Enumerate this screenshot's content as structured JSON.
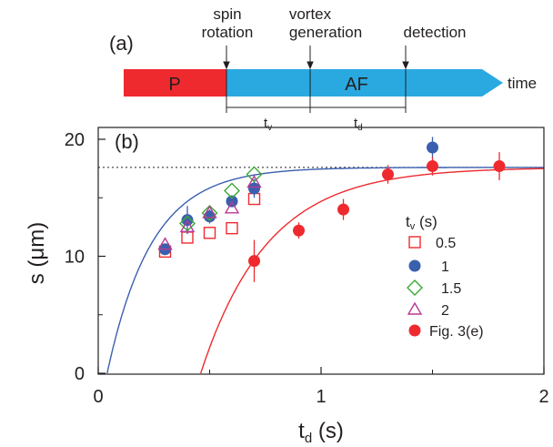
{
  "panel_a": {
    "label": "(a)",
    "events": [
      "spin\nrotation",
      "vortex\ngeneration",
      "detection"
    ],
    "phase_p": "P",
    "phase_af": "AF",
    "arrow_label": "time",
    "tv_label": "t",
    "tv_sub": "v",
    "td_label": "t",
    "td_sub": "d",
    "colors": {
      "p": "#ee2a2f",
      "af": "#2aa9e0"
    }
  },
  "chart_data": {
    "type": "scatter",
    "panel_label": "(b)",
    "xlabel": "t",
    "xlabel_sub": "d",
    "xlabel_unit": " (s)",
    "ylabel": "s (μm)",
    "xlim": [
      0,
      2
    ],
    "ylim": [
      0,
      20
    ],
    "xticks": [
      "0",
      "1",
      "2"
    ],
    "yticks": [
      "0",
      "10",
      "20"
    ],
    "reference_line_y": 17.6,
    "legend": {
      "title": "t",
      "title_sub": "v",
      "title_unit": " (s)",
      "position": "right"
    },
    "series": [
      {
        "name": "0.5",
        "marker": "square",
        "color": "#ee2a2f",
        "x": [
          0.3,
          0.4,
          0.5,
          0.6,
          0.7
        ],
        "y": [
          10.4,
          11.6,
          12.0,
          12.4,
          14.9
        ]
      },
      {
        "name": "1",
        "marker": "filled-circle",
        "color": "#3a5fae",
        "x": [
          0.3,
          0.4,
          0.5,
          0.6,
          0.7,
          1.5
        ],
        "y": [
          10.6,
          13.1,
          13.4,
          14.7,
          15.8,
          19.3
        ],
        "err": [
          0,
          1.2,
          0.6,
          0.5,
          0.8,
          0.9
        ]
      },
      {
        "name": "1.5",
        "marker": "diamond",
        "color": "#3aaa35",
        "x": [
          0.4,
          0.5,
          0.6,
          0.7
        ],
        "y": [
          12.8,
          13.7,
          15.6,
          17.0
        ]
      },
      {
        "name": "2",
        "marker": "triangle",
        "color": "#b83a96",
        "x": [
          0.3,
          0.4,
          0.5,
          0.6,
          0.7
        ],
        "y": [
          11.0,
          12.5,
          13.7,
          14.1,
          16.3
        ]
      },
      {
        "name": "Fig. 3(e)",
        "marker": "filled-circle",
        "color": "#ee2a2f",
        "x": [
          0.7,
          0.9,
          1.1,
          1.3,
          1.5,
          1.8
        ],
        "y": [
          9.6,
          12.2,
          14.0,
          17.0,
          17.7,
          17.7
        ],
        "err": [
          1.8,
          0.7,
          0.9,
          0.8,
          0.8,
          1.2
        ]
      }
    ],
    "fits": [
      {
        "color": "#3a5fae",
        "x0": 0.04,
        "a": 17.6,
        "tau": 0.2
      },
      {
        "color": "#ee2a2f",
        "x0": 0.46,
        "a": 17.6,
        "tau": 0.3
      }
    ]
  }
}
